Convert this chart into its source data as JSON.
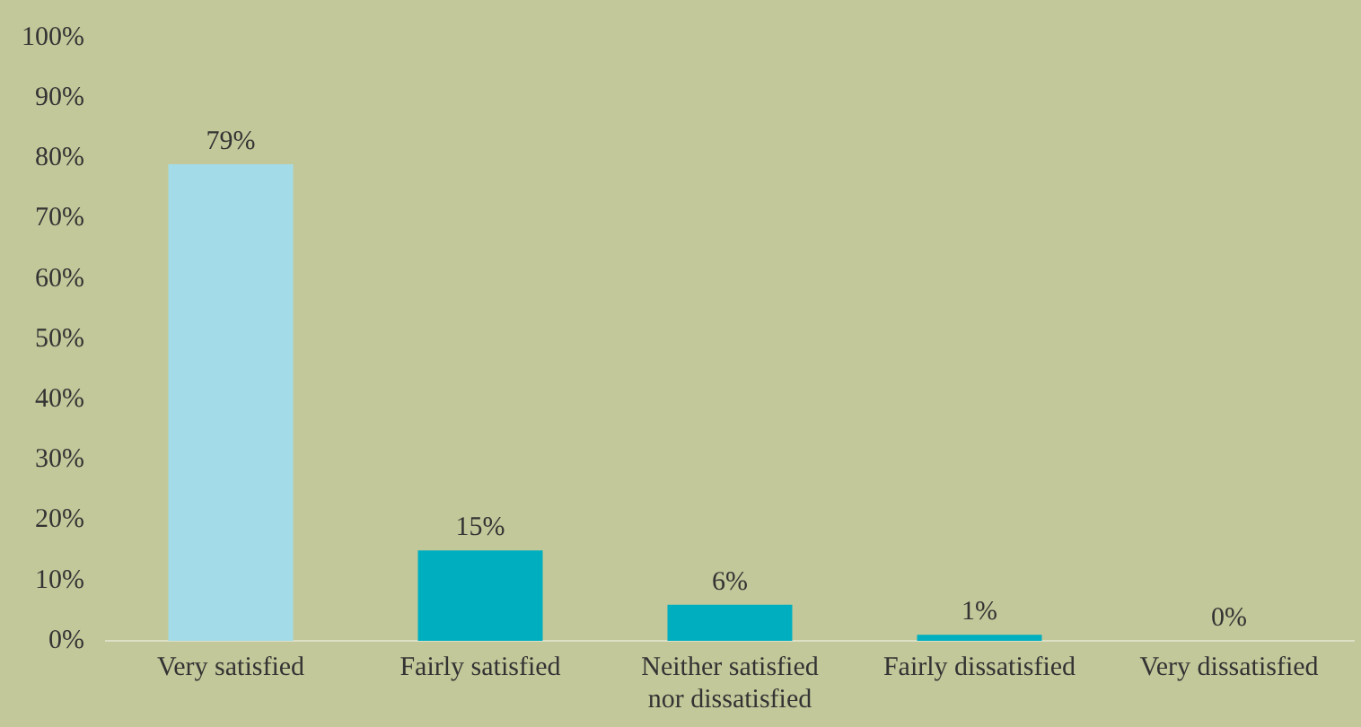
{
  "chart_data": {
    "type": "bar",
    "categories": [
      "Very satisfied",
      "Fairly satisfied",
      "Neither satisfied nor dissatisfied",
      "Fairly dissatisfied",
      "Very dissatisfied"
    ],
    "values": [
      79,
      15,
      6,
      1,
      0
    ],
    "colors": [
      "#a3dce8",
      "#00afbf",
      "#00afbf",
      "#00afbf",
      "#00afbf"
    ],
    "value_labels": [
      "79%",
      "15%",
      "6%",
      "1%",
      "0%"
    ],
    "ylim": [
      0,
      100
    ],
    "yticks": [
      {
        "value": 0,
        "label": "0%"
      },
      {
        "value": 10,
        "label": "10%"
      },
      {
        "value": 20,
        "label": "20%"
      },
      {
        "value": 30,
        "label": "30%"
      },
      {
        "value": 40,
        "label": "40%"
      },
      {
        "value": 50,
        "label": "50%"
      },
      {
        "value": 60,
        "label": "60%"
      },
      {
        "value": 70,
        "label": "70%"
      },
      {
        "value": 80,
        "label": "80%"
      },
      {
        "value": 90,
        "label": "90%"
      },
      {
        "value": 100,
        "label": "100%"
      }
    ],
    "grid": false,
    "legend": false
  }
}
